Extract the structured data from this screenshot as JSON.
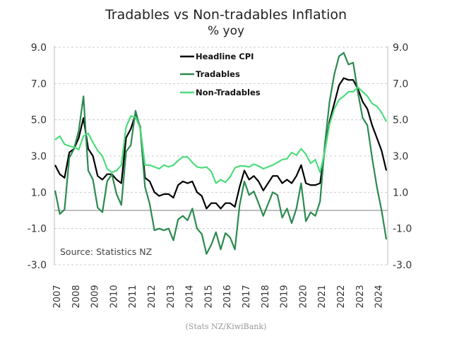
{
  "chart_data": {
    "type": "line",
    "title": "Tradables vs Non-tradables Inflation",
    "subtitle": "% yoy",
    "annotation": "Source:  Statistics NZ",
    "footer": "(Stats NZ/KiwiBank)",
    "x_tick_labels": [
      "2007",
      "2008",
      "2009",
      "2010",
      "2011",
      "2012",
      "2013",
      "2014",
      "2015",
      "2016",
      "2017",
      "2018",
      "2019",
      "2020",
      "2021",
      "2022",
      "2023",
      "2024"
    ],
    "x_start": "2007 Q1",
    "frequency": "quarterly",
    "y_ticks": [
      "9.0",
      "7.0",
      "5.0",
      "3.0",
      "1.0",
      "-1.0",
      "-3.0"
    ],
    "ylim": [
      -3,
      9
    ],
    "grid": "horizontal dashed",
    "dual_y_axis_labels": true,
    "legend_placement": "top-center",
    "series": [
      {
        "name": "Headline CPI",
        "color": "#000000",
        "values": [
          2.5,
          2.0,
          1.8,
          3.2,
          3.4,
          4.0,
          5.1,
          3.4,
          3.0,
          1.9,
          1.7,
          2.0,
          2.0,
          1.7,
          1.5,
          4.0,
          4.5,
          5.3,
          4.6,
          1.8,
          1.6,
          1.0,
          0.8,
          0.9,
          0.9,
          0.7,
          1.4,
          1.6,
          1.5,
          1.6,
          1.0,
          0.8,
          0.1,
          0.4,
          0.4,
          0.1,
          0.4,
          0.4,
          0.2,
          1.3,
          2.2,
          1.7,
          1.9,
          1.6,
          1.1,
          1.5,
          1.9,
          1.9,
          1.5,
          1.7,
          1.5,
          1.9,
          2.5,
          1.5,
          1.4,
          1.4,
          1.5,
          3.3,
          4.9,
          5.9,
          6.9,
          7.3,
          7.2,
          7.2,
          6.7,
          6.0,
          5.6,
          4.7,
          4.0,
          3.3,
          2.2
        ]
      },
      {
        "name": "Tradables",
        "color": "#2b8a4f",
        "values": [
          1.1,
          -0.2,
          0.05,
          2.9,
          3.4,
          4.4,
          6.3,
          2.2,
          1.7,
          0.15,
          -0.1,
          1.6,
          2.0,
          0.9,
          0.3,
          3.25,
          3.6,
          5.5,
          4.5,
          1.3,
          0.35,
          -1.1,
          -1.0,
          -1.1,
          -1.0,
          -1.65,
          -0.5,
          -0.3,
          -0.55,
          0.1,
          -1.0,
          -1.3,
          -2.4,
          -1.9,
          -1.2,
          -2.15,
          -1.25,
          -1.5,
          -2.15,
          0.3,
          1.6,
          0.85,
          1.05,
          0.4,
          -0.3,
          0.35,
          1.0,
          0.85,
          -0.4,
          0.1,
          -0.7,
          0.1,
          1.5,
          -0.6,
          -0.1,
          -0.3,
          0.5,
          3.6,
          6.0,
          7.5,
          8.5,
          8.7,
          8.05,
          8.15,
          6.5,
          5.1,
          4.7,
          2.9,
          1.3,
          0.0,
          -1.6
        ]
      },
      {
        "name": "Non-Tradables",
        "color": "#4cdc7c",
        "values": [
          3.9,
          4.1,
          3.65,
          3.55,
          3.5,
          3.35,
          4.1,
          4.25,
          3.75,
          3.3,
          3.0,
          2.3,
          2.1,
          2.2,
          2.5,
          4.6,
          5.2,
          5.15,
          4.55,
          2.5,
          2.5,
          2.4,
          2.3,
          2.5,
          2.4,
          2.5,
          2.75,
          2.95,
          2.95,
          2.65,
          2.4,
          2.35,
          2.4,
          2.15,
          1.5,
          1.7,
          1.55,
          1.85,
          2.35,
          2.45,
          2.45,
          2.4,
          2.55,
          2.45,
          2.3,
          2.4,
          2.5,
          2.65,
          2.8,
          2.85,
          3.2,
          3.05,
          3.4,
          3.1,
          2.6,
          2.8,
          2.1,
          3.25,
          4.75,
          5.6,
          6.1,
          6.3,
          6.55,
          6.55,
          6.8,
          6.55,
          6.3,
          5.9,
          5.75,
          5.4,
          4.9
        ]
      }
    ]
  }
}
